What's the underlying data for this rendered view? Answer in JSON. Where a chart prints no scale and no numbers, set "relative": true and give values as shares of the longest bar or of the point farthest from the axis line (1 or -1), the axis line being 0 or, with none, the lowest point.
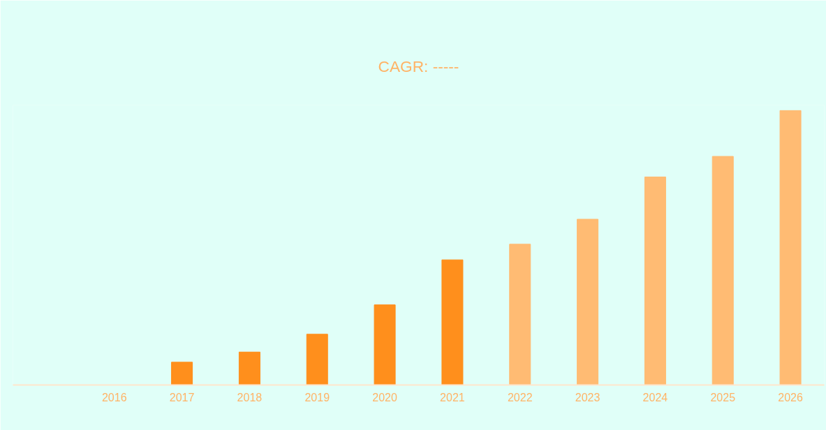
{
  "chart_data": {
    "type": "bar",
    "title": "CAGR: -----",
    "relative": true,
    "categories": [
      "2016",
      "2017",
      "2018",
      "2019",
      "2020",
      "2021",
      "2022",
      "2023",
      "2024",
      "2025",
      "2026"
    ],
    "values": [
      0,
      0.083,
      0.12,
      0.185,
      0.292,
      0.456,
      0.513,
      0.604,
      0.758,
      0.833,
      1
    ],
    "colors": [
      "#ff8f1c",
      "#ff8f1c",
      "#ff8f1c",
      "#ff8f1c",
      "#ff8f1c",
      "#ff8f1c",
      "#ffbb73",
      "#ffbb73",
      "#ffbb73",
      "#ffbb73",
      "#ffbb73"
    ],
    "grid": false
  }
}
